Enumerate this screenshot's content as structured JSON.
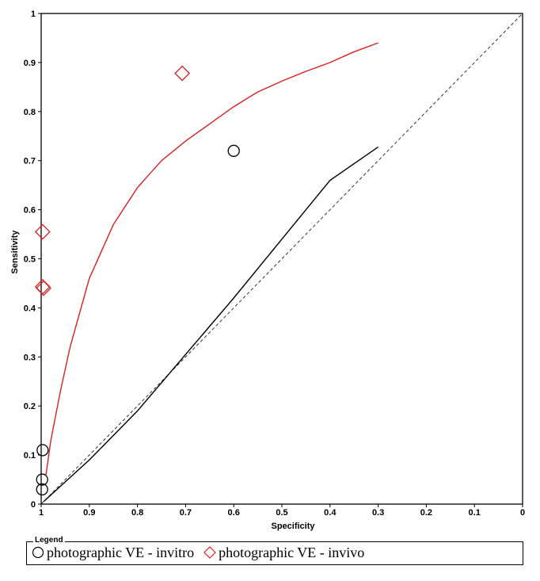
{
  "chart_data": {
    "type": "scatter",
    "title": "",
    "xlabel": "Specificity",
    "ylabel": "Sensitivity",
    "x_reversed": true,
    "xlim": [
      1,
      0
    ],
    "ylim": [
      0,
      1
    ],
    "x_ticks": [
      "1",
      "0.9",
      "0.8",
      "0.7",
      "0.6",
      "0.5",
      "0.4",
      "0.3",
      "0.2",
      "0.1",
      "0"
    ],
    "y_ticks": [
      "0",
      "0.1",
      "0.2",
      "0.3",
      "0.4",
      "0.5",
      "0.6",
      "0.7",
      "0.8",
      "0.9",
      "1"
    ],
    "legend_title": "Legend",
    "legend_position": "bottom",
    "series": [
      {
        "name": "photographic VE - invitro",
        "marker": "circle",
        "color": "#000000",
        "points": [
          [
            0.997,
            0.11
          ],
          [
            0.998,
            0.05
          ],
          [
            0.998,
            0.03
          ],
          [
            0.6,
            0.72
          ]
        ],
        "curve": [
          [
            0.995,
            0.005
          ],
          [
            0.9,
            0.09
          ],
          [
            0.8,
            0.19
          ],
          [
            0.7,
            0.305
          ],
          [
            0.6,
            0.42
          ],
          [
            0.5,
            0.54
          ],
          [
            0.4,
            0.66
          ],
          [
            0.3,
            0.728
          ]
        ]
      },
      {
        "name": "photographic VE - invivo",
        "marker": "diamond",
        "color": "#d62020",
        "points": [
          [
            0.997,
            0.555
          ],
          [
            0.997,
            0.443
          ],
          [
            0.995,
            0.44
          ],
          [
            0.707,
            0.878
          ]
        ],
        "curve": [
          [
            0.99,
            0.06
          ],
          [
            0.98,
            0.13
          ],
          [
            0.96,
            0.23
          ],
          [
            0.94,
            0.32
          ],
          [
            0.9,
            0.46
          ],
          [
            0.85,
            0.57
          ],
          [
            0.8,
            0.645
          ],
          [
            0.75,
            0.7
          ],
          [
            0.7,
            0.74
          ],
          [
            0.65,
            0.775
          ],
          [
            0.6,
            0.81
          ],
          [
            0.55,
            0.84
          ],
          [
            0.5,
            0.862
          ],
          [
            0.45,
            0.882
          ],
          [
            0.4,
            0.9
          ],
          [
            0.35,
            0.922
          ],
          [
            0.3,
            0.94
          ]
        ]
      }
    ],
    "reference_line": "diagonal dashed"
  }
}
